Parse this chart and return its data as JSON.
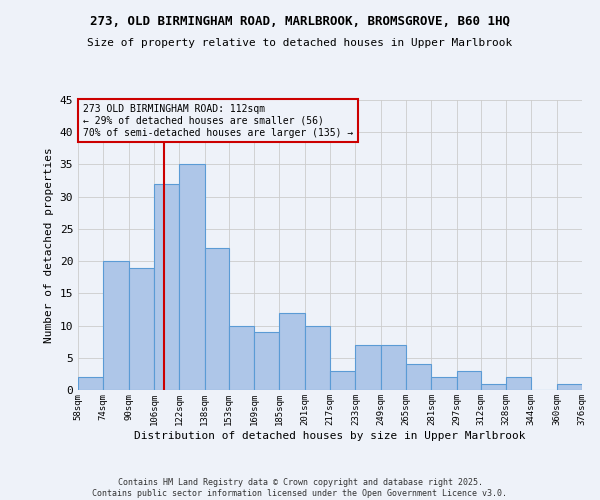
{
  "title1": "273, OLD BIRMINGHAM ROAD, MARLBROOK, BROMSGROVE, B60 1HQ",
  "title2": "Size of property relative to detached houses in Upper Marlbrook",
  "xlabel": "Distribution of detached houses by size in Upper Marlbrook",
  "ylabel": "Number of detached properties",
  "bar_color": "#aec6e8",
  "bar_edge_color": "#5b9bd5",
  "bins": [
    58,
    74,
    90,
    106,
    122,
    138,
    153,
    169,
    185,
    201,
    217,
    233,
    249,
    265,
    281,
    297,
    312,
    328,
    344,
    360,
    376
  ],
  "bin_labels": [
    "58sqm",
    "74sqm",
    "90sqm",
    "106sqm",
    "122sqm",
    "138sqm",
    "153sqm",
    "169sqm",
    "185sqm",
    "201sqm",
    "217sqm",
    "233sqm",
    "249sqm",
    "265sqm",
    "281sqm",
    "297sqm",
    "312sqm",
    "328sqm",
    "344sqm",
    "360sqm",
    "376sqm"
  ],
  "counts": [
    2,
    20,
    19,
    32,
    35,
    22,
    10,
    9,
    12,
    10,
    3,
    7,
    7,
    4,
    2,
    3,
    1,
    2,
    0,
    1
  ],
  "property_sqm": 112,
  "vline_x": 112,
  "annotation_line1": "273 OLD BIRMINGHAM ROAD: 112sqm",
  "annotation_line2": "← 29% of detached houses are smaller (56)",
  "annotation_line3": "70% of semi-detached houses are larger (135) →",
  "ylim": [
    0,
    45
  ],
  "yticks": [
    0,
    5,
    10,
    15,
    20,
    25,
    30,
    35,
    40,
    45
  ],
  "grid_color": "#cccccc",
  "vline_color": "#cc0000",
  "annotation_box_edge": "#cc0000",
  "bg_color": "#eef2f9",
  "copyright": "Contains HM Land Registry data © Crown copyright and database right 2025.\nContains public sector information licensed under the Open Government Licence v3.0."
}
